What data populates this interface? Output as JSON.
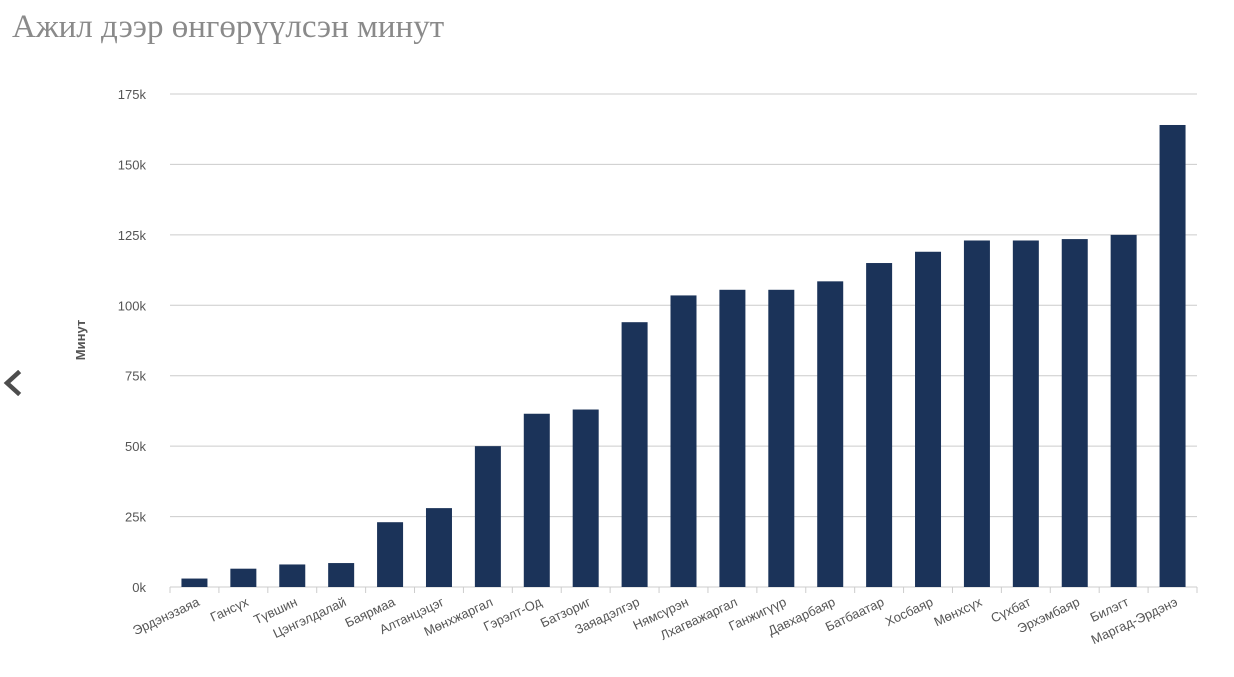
{
  "page": {
    "title": "Ажил дээр өнгөрүүлсэн минут"
  },
  "nav": {
    "back_icon": "chevron-left-icon"
  },
  "colors": {
    "bar": "#1b3359",
    "grid": "#cccccc",
    "title": "#8a8a8a",
    "text": "#555555"
  },
  "chart_data": {
    "type": "bar",
    "title": "Ажил дээр өнгөрүүлсэн минут",
    "xlabel": "",
    "ylabel": "Минут",
    "ylim": [
      0,
      175000
    ],
    "yticks": [
      0,
      25000,
      50000,
      75000,
      100000,
      125000,
      150000,
      175000
    ],
    "ytick_labels": [
      "0k",
      "25k",
      "50k",
      "75k",
      "100k",
      "125k",
      "150k",
      "175k"
    ],
    "grid": true,
    "legend": "none",
    "categories": [
      "Эрдэнэзаяа",
      "Гансүх",
      "Түвшин",
      "Цэнгэлдалай",
      "Баярмаа",
      "Алтанцэцэг",
      "Мөнхжаргал",
      "Гэрэлт-Од",
      "Батзориг",
      "Заяадэлгэр",
      "Нямсүрэн",
      "Лхагважаргал",
      "Ганжигүүр",
      "Давхарбаяр",
      "Батбаатар",
      "Хосбаяр",
      "Мөнхсүх",
      "Сүхбат",
      "Эрхэмбаяр",
      "Билэгт",
      "Маргад-Эрдэнэ"
    ],
    "values": [
      3000,
      6500,
      8000,
      8500,
      23000,
      28000,
      50000,
      61500,
      63000,
      94000,
      103500,
      105500,
      105500,
      108500,
      115000,
      119000,
      123000,
      123000,
      123500,
      125000,
      164000
    ]
  }
}
